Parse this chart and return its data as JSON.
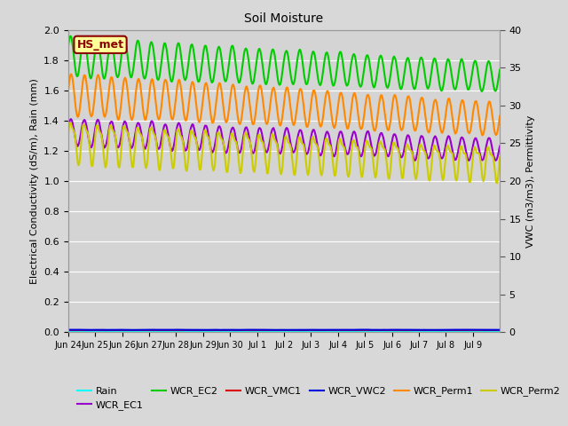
{
  "title": "Soil Moisture",
  "ylabel_left": "Electrical Conductivity (dS/m), Rain (mm)",
  "ylabel_right": "VWC (m3/m3), Permittivity",
  "ylim_left": [
    0.0,
    2.0
  ],
  "ylim_right": [
    0,
    40
  ],
  "fig_bg_color": "#d8d8d8",
  "plot_bg_color": "#d4d4d4",
  "x_tick_labels": [
    "Jun 24",
    "Jun 25",
    "Jun 26",
    "Jun 27",
    "Jun 28",
    "Jun 29",
    "Jun 30",
    "Jul 1",
    "Jul 2",
    "Jul 3",
    "Jul 4",
    "Jul 5",
    "Jul 6",
    "Jul 7",
    "Jul 8",
    "Jul 9"
  ],
  "annotation_text": "HS_met",
  "annotation_color": "#8b0000",
  "annotation_bg": "#ffff99",
  "annotation_border": "#8b0000",
  "series": {
    "Rain": {
      "color": "#00ffff",
      "linewidth": 1.2
    },
    "WCR_EC1": {
      "color": "#9900cc",
      "linewidth": 1.5
    },
    "WCR_EC2": {
      "color": "#00cc00",
      "linewidth": 1.5
    },
    "WCR_VMC1": {
      "color": "#dd0000",
      "linewidth": 1.5
    },
    "WCR_VWC2": {
      "color": "#0000dd",
      "linewidth": 1.5
    },
    "WCR_Perm1": {
      "color": "#ff8800",
      "linewidth": 1.5
    },
    "WCR_Perm2": {
      "color": "#cccc00",
      "linewidth": 1.5
    }
  },
  "yticks_left": [
    0.0,
    0.2,
    0.4,
    0.6,
    0.8,
    1.0,
    1.2,
    1.4,
    1.6,
    1.8,
    2.0
  ],
  "yticks_right": [
    0,
    5,
    10,
    15,
    20,
    25,
    30,
    35,
    40
  ]
}
